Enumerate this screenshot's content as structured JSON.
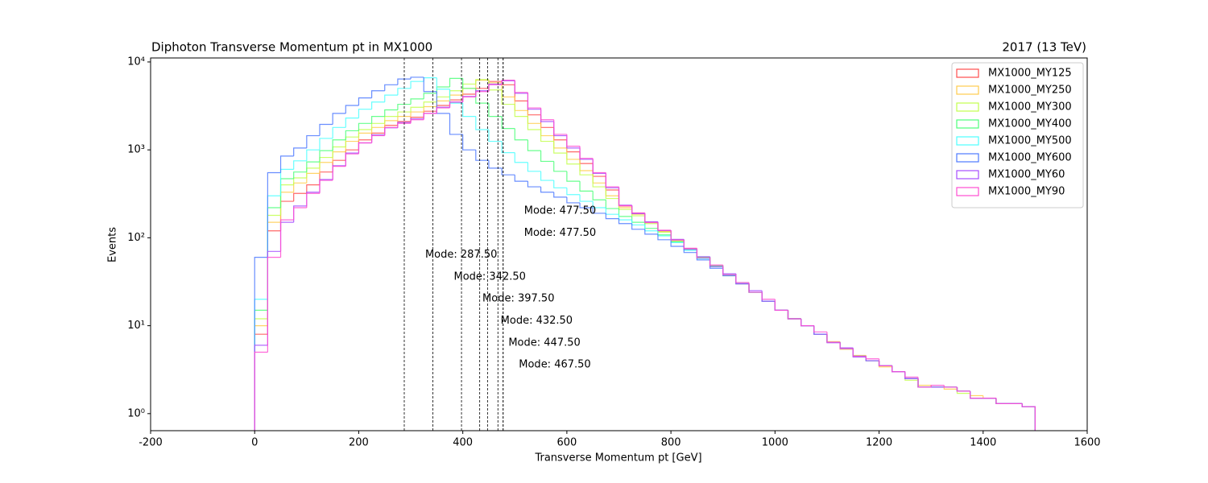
{
  "chart_data": {
    "type": "histogram",
    "title": "Diphoton Transverse Momentum pt in MX1000",
    "subtitle": "2017 (13 TeV)",
    "x_label": "Transverse Momentum pt [GeV]",
    "y_label": "Events",
    "log_y": true,
    "legend_position": "upper right",
    "xlim": [
      -200,
      1600
    ],
    "ylim": [
      0.64,
      11100
    ],
    "xticks": [
      -200,
      0,
      200,
      400,
      600,
      800,
      1000,
      1200,
      1400,
      1600
    ],
    "yticks": [
      {
        "value": 1,
        "label": "10⁰"
      },
      {
        "value": 10,
        "label": "10¹"
      },
      {
        "value": 100,
        "label": "10²"
      },
      {
        "value": 1000,
        "label": "10³"
      },
      {
        "value": 10000,
        "label": "10⁴"
      }
    ],
    "bins": [
      0,
      25,
      50,
      75,
      100,
      125,
      150,
      175,
      200,
      225,
      250,
      275,
      300,
      325,
      350,
      375,
      400,
      425,
      450,
      475,
      500,
      525,
      550,
      575,
      600,
      625,
      650,
      675,
      700,
      725,
      750,
      775,
      800,
      825,
      850,
      875,
      900,
      925,
      950,
      975,
      1000,
      1025,
      1050,
      1075,
      1100,
      1125,
      1150,
      1175,
      1200,
      1225,
      1250,
      1275,
      1300,
      1325,
      1350,
      1375,
      1400,
      1425,
      1450,
      1475,
      1500
    ],
    "series": [
      {
        "name": "MX1000_MY125",
        "color": "#ff4d4d",
        "values": [
          8,
          120,
          260,
          320,
          400,
          560,
          760,
          1000,
          1300,
          1550,
          1900,
          2100,
          2350,
          2750,
          3200,
          3700,
          4300,
          5000,
          6000,
          5500,
          3600,
          2500,
          1800,
          1300,
          950,
          700,
          500,
          350,
          230,
          190,
          150,
          120,
          95,
          75,
          60,
          48,
          38,
          30,
          24,
          19,
          15,
          12,
          10,
          8,
          6.5,
          5.5,
          4.5,
          4,
          3.5,
          3,
          2.5,
          2,
          2,
          2,
          1.8,
          1.5,
          1.5,
          1.3,
          1.3,
          1.2
        ]
      },
      {
        "name": "MX1000_MY250",
        "color": "#ffcc4d",
        "values": [
          10,
          150,
          330,
          420,
          540,
          720,
          950,
          1250,
          1550,
          1800,
          2150,
          2400,
          2700,
          3100,
          3600,
          4200,
          5000,
          6200,
          5800,
          4000,
          2800,
          2000,
          1450,
          1050,
          780,
          580,
          420,
          300,
          220,
          185,
          150,
          118,
          94,
          75,
          60,
          47,
          38,
          30,
          24,
          19,
          15,
          12,
          10,
          8,
          6.6,
          5.4,
          4.6,
          4,
          3.4,
          3,
          2.5,
          2.1,
          2,
          1.9,
          1.8,
          1.6,
          1.5,
          1.3,
          1.3,
          1.2
        ]
      },
      {
        "name": "MX1000_MY300",
        "color": "#c3ff4d",
        "values": [
          12,
          180,
          400,
          480,
          620,
          820,
          1080,
          1400,
          1700,
          2000,
          2400,
          2700,
          3050,
          3500,
          4000,
          4700,
          5600,
          6300,
          4800,
          3300,
          2400,
          1700,
          1250,
          920,
          690,
          520,
          380,
          280,
          210,
          178,
          145,
          116,
          92,
          74,
          59,
          47,
          37,
          30,
          24,
          19,
          15,
          12,
          10,
          8,
          6.5,
          5.5,
          4.5,
          4,
          3.5,
          3,
          2.4,
          2,
          2,
          2,
          1.7,
          1.5,
          1.5,
          1.3,
          1.3,
          1.2
        ]
      },
      {
        "name": "MX1000_MY400",
        "color": "#4dff7a",
        "values": [
          15,
          220,
          470,
          560,
          730,
          980,
          1300,
          1650,
          2000,
          2400,
          2850,
          3300,
          3800,
          4400,
          5200,
          6500,
          5000,
          3400,
          2400,
          1750,
          1300,
          980,
          740,
          570,
          440,
          340,
          270,
          215,
          175,
          150,
          128,
          108,
          90,
          74,
          60,
          48,
          38,
          30,
          24,
          19,
          15,
          12,
          10,
          8,
          6.5,
          5.5,
          4.5,
          4,
          3.5,
          3,
          2.5,
          2,
          2,
          2,
          1.8,
          1.5,
          1.5,
          1.3,
          1.3,
          1.2
        ]
      },
      {
        "name": "MX1000_MY500",
        "color": "#4dffff",
        "values": [
          20,
          300,
          600,
          750,
          1000,
          1350,
          1800,
          2300,
          2900,
          3500,
          4200,
          5000,
          6000,
          6600,
          4900,
          3400,
          2400,
          1700,
          1250,
          930,
          720,
          570,
          450,
          370,
          310,
          260,
          220,
          185,
          160,
          140,
          120,
          105,
          88,
          72,
          58,
          47,
          38,
          30,
          24,
          19,
          15,
          12,
          10,
          8,
          6.5,
          5.5,
          4.5,
          4,
          3.5,
          3,
          2.5,
          2,
          2,
          2,
          1.8,
          1.5,
          1.5,
          1.3,
          1.3,
          1.2
        ]
      },
      {
        "name": "MX1000_MY600",
        "color": "#4d7aff",
        "values": [
          60,
          550,
          850,
          1050,
          1450,
          1950,
          2600,
          3200,
          3900,
          4700,
          5500,
          6400,
          6700,
          4600,
          2600,
          1500,
          1000,
          760,
          620,
          520,
          440,
          380,
          330,
          290,
          250,
          220,
          190,
          165,
          145,
          125,
          110,
          95,
          80,
          68,
          56,
          45,
          37,
          30,
          24,
          19,
          15,
          12,
          10,
          8,
          6.5,
          5.5,
          4.5,
          4,
          3.5,
          3,
          2.5,
          2,
          2,
          2,
          1.8,
          1.5,
          1.5,
          1.3,
          1.3,
          1.2
        ]
      },
      {
        "name": "MX1000_MY60",
        "color": "#a64dff",
        "values": [
          6,
          70,
          150,
          230,
          330,
          460,
          660,
          920,
          1200,
          1480,
          1780,
          2050,
          2250,
          2600,
          3050,
          3500,
          4050,
          4700,
          5600,
          6100,
          4400,
          2900,
          2100,
          1450,
          1050,
          780,
          540,
          370,
          235,
          188,
          152,
          121,
          96,
          74,
          61,
          47,
          39,
          30,
          25,
          19,
          15,
          12,
          10,
          8,
          6.4,
          5.6,
          4.4,
          4,
          3.5,
          3,
          2.5,
          2,
          2,
          2,
          1.8,
          1.5,
          1.5,
          1.3,
          1.3,
          1.2
        ]
      },
      {
        "name": "MX1000_MY90",
        "color": "#ff4dd2",
        "values": [
          5,
          60,
          160,
          220,
          320,
          450,
          650,
          900,
          1200,
          1450,
          1800,
          2000,
          2200,
          2600,
          3000,
          3500,
          4000,
          4600,
          5500,
          6200,
          4500,
          3000,
          2200,
          1500,
          1100,
          800,
          550,
          380,
          232,
          192,
          149,
          122,
          94,
          76,
          59,
          49,
          38,
          31,
          24,
          20,
          15,
          12,
          10,
          8.5,
          6.5,
          5.5,
          4.5,
          4.2,
          3.5,
          3,
          2.6,
          2,
          2.1,
          2,
          1.8,
          1.5,
          1.5,
          1.3,
          1.3,
          1.2
        ]
      }
    ],
    "modes": [
      {
        "label": "Mode: 477.50",
        "value": 477.5
      },
      {
        "label": "Mode: 477.50",
        "value": 477.5
      },
      {
        "label": "Mode: 287.50",
        "value": 287.5
      },
      {
        "label": "Mode: 342.50",
        "value": 342.5
      },
      {
        "label": "Mode: 397.50",
        "value": 397.5
      },
      {
        "label": "Mode: 432.50",
        "value": 432.5
      },
      {
        "label": "Mode: 447.50",
        "value": 447.5
      },
      {
        "label": "Mode: 467.50",
        "value": 467.5
      }
    ]
  }
}
